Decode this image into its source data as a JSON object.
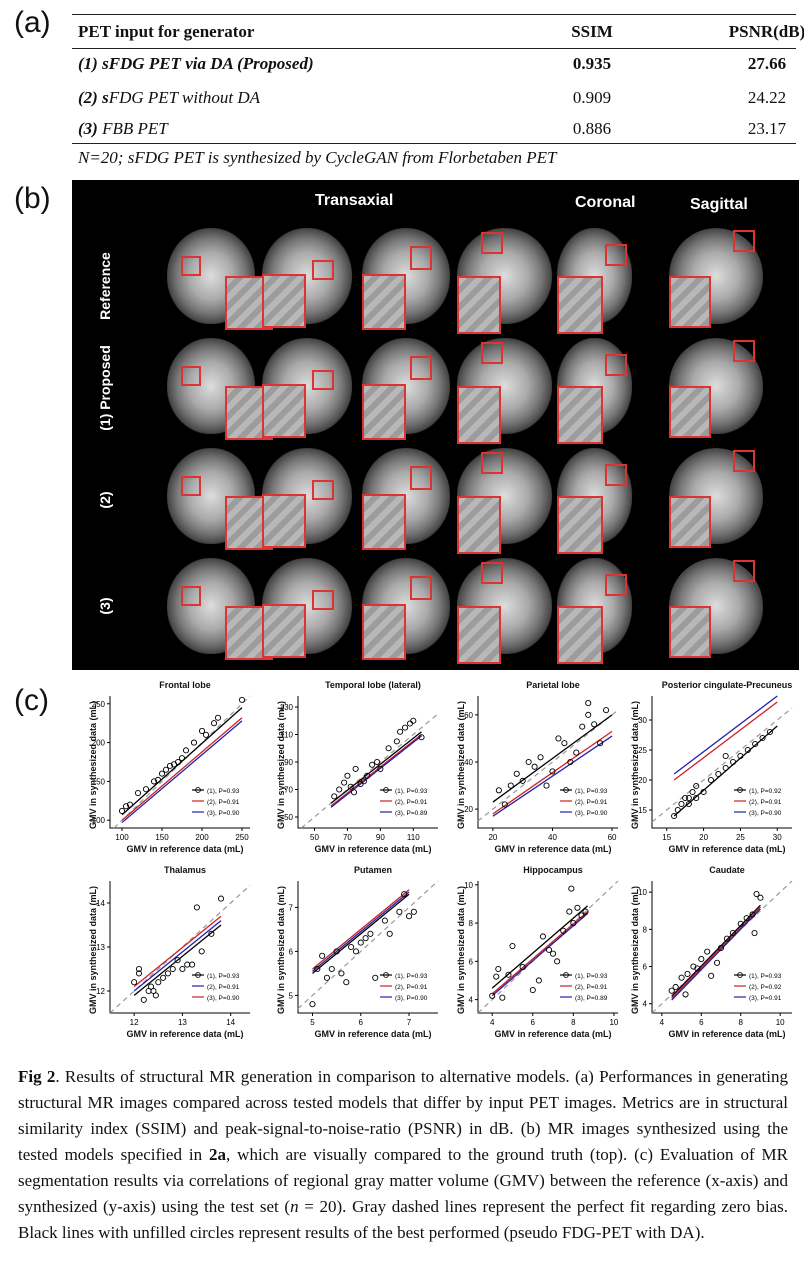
{
  "panel_labels": {
    "a": "(a)",
    "b": "(b)",
    "c": "(c)"
  },
  "table": {
    "headers": [
      "PET input for generator",
      "SSIM",
      "PSNR(dB)"
    ],
    "rows": [
      {
        "name_b": "(1) sFDG PET via DA (Proposed)",
        "ssim": "0.935",
        "psnr": "27.66",
        "bold": true
      },
      {
        "num": "(2) ",
        "s": "s",
        "rest": "FDG PET without DA",
        "ssim": "0.909",
        "psnr": "24.22",
        "bold": false
      },
      {
        "num": "(3) ",
        "s": "",
        "rest": "FBB PET",
        "ssim": "0.886",
        "psnr": "23.17",
        "bold": false
      }
    ],
    "note": "N=20; sFDG PET  is synthesized by CycleGAN from Florbetaben PET"
  },
  "mr": {
    "col_headers": {
      "transaxial": "Transaxial",
      "coronal": "Coronal",
      "sagittal": "Sagittal"
    },
    "row_headers": [
      "Reference",
      "(1) Proposed",
      "(2)",
      "(3)"
    ]
  },
  "chart_data": [
    {
      "type": "scatter",
      "title": "Frontal lobe",
      "xlabel": "GMV in reference data (mL)",
      "ylabel": "GMV in synthesized data (mL)",
      "xlim": [
        85,
        260
      ],
      "ylim": [
        90,
        260
      ],
      "xticks": [
        100,
        150,
        200,
        250
      ],
      "yticks": [
        100,
        150,
        200,
        250
      ],
      "points": [
        [
          100,
          112
        ],
        [
          105,
          118
        ],
        [
          110,
          120
        ],
        [
          120,
          135
        ],
        [
          130,
          140
        ],
        [
          140,
          150
        ],
        [
          145,
          152
        ],
        [
          150,
          160
        ],
        [
          155,
          165
        ],
        [
          160,
          170
        ],
        [
          165,
          172
        ],
        [
          170,
          175
        ],
        [
          175,
          180
        ],
        [
          180,
          190
        ],
        [
          190,
          200
        ],
        [
          200,
          215
        ],
        [
          205,
          210
        ],
        [
          215,
          225
        ],
        [
          220,
          232
        ],
        [
          250,
          255
        ]
      ],
      "series": [
        {
          "name": "(1), P=0.93",
          "color": "#000000",
          "line": [
            100,
            107,
            250,
            245
          ]
        },
        {
          "name": "(2), P=0.91",
          "color": "#cc2222",
          "line": [
            100,
            100,
            250,
            232
          ]
        },
        {
          "name": "(3), P=0.90",
          "color": "#2222aa",
          "line": [
            100,
            97,
            250,
            228
          ]
        }
      ]
    },
    {
      "type": "scatter",
      "title": "Temporal lobe (lateral)",
      "xlabel": "GMV in reference data (mL)",
      "ylabel": "GMV in synthesized data (mL)",
      "xlim": [
        40,
        125
      ],
      "ylim": [
        42,
        138
      ],
      "xticks": [
        50,
        70,
        90,
        110
      ],
      "yticks": [
        50,
        70,
        90,
        110,
        130
      ],
      "points": [
        [
          62,
          65
        ],
        [
          65,
          70
        ],
        [
          68,
          75
        ],
        [
          70,
          80
        ],
        [
          72,
          72
        ],
        [
          74,
          68
        ],
        [
          75,
          85
        ],
        [
          78,
          74
        ],
        [
          80,
          76
        ],
        [
          82,
          80
        ],
        [
          85,
          88
        ],
        [
          88,
          90
        ],
        [
          90,
          85
        ],
        [
          95,
          100
        ],
        [
          100,
          105
        ],
        [
          102,
          112
        ],
        [
          105,
          115
        ],
        [
          108,
          118
        ],
        [
          110,
          120
        ],
        [
          115,
          108
        ]
      ],
      "series": [
        {
          "name": "(1), P=0.93",
          "color": "#000000",
          "line": [
            60,
            60,
            115,
            112
          ]
        },
        {
          "name": "(2), P=0.91",
          "color": "#cc2222",
          "line": [
            60,
            58,
            115,
            110
          ]
        },
        {
          "name": "(3), P=0.89",
          "color": "#2222aa",
          "line": [
            60,
            57,
            115,
            109
          ]
        }
      ]
    },
    {
      "type": "scatter",
      "title": "Parietal lobe",
      "xlabel": "GMV in reference data (mL)",
      "ylabel": "GMV in synthesized data (mL)",
      "xlim": [
        15,
        62
      ],
      "ylim": [
        12,
        68
      ],
      "xticks": [
        20,
        40,
        60
      ],
      "yticks": [
        20,
        40,
        60
      ],
      "points": [
        [
          22,
          28
        ],
        [
          24,
          22
        ],
        [
          26,
          30
        ],
        [
          28,
          35
        ],
        [
          30,
          32
        ],
        [
          32,
          40
        ],
        [
          34,
          38
        ],
        [
          36,
          42
        ],
        [
          38,
          30
        ],
        [
          40,
          36
        ],
        [
          42,
          50
        ],
        [
          44,
          48
        ],
        [
          46,
          40
        ],
        [
          48,
          44
        ],
        [
          50,
          55
        ],
        [
          52,
          60
        ],
        [
          54,
          56
        ],
        [
          56,
          48
        ],
        [
          58,
          62
        ],
        [
          52,
          65
        ]
      ],
      "series": [
        {
          "name": "(1), P=0.93",
          "color": "#000000",
          "line": [
            20,
            23,
            60,
            60
          ]
        },
        {
          "name": "(2), P=0.91",
          "color": "#cc2222",
          "line": [
            20,
            18,
            60,
            53
          ]
        },
        {
          "name": "(3), P=0.90",
          "color": "#2222aa",
          "line": [
            20,
            17,
            60,
            51
          ]
        }
      ]
    },
    {
      "type": "scatter",
      "title": "Posterior cingulate-Precuneus",
      "xlabel": "GMV in reference data (mL)",
      "ylabel": "GMV in synthesized data (mL)",
      "xlim": [
        13,
        32
      ],
      "ylim": [
        12,
        34
      ],
      "xticks": [
        15,
        20,
        25,
        30
      ],
      "yticks": [
        15,
        20,
        25,
        30
      ],
      "points": [
        [
          16,
          14
        ],
        [
          16.5,
          15
        ],
        [
          17,
          16
        ],
        [
          17.5,
          17
        ],
        [
          18,
          16
        ],
        [
          18,
          17
        ],
        [
          18.5,
          18
        ],
        [
          19,
          17
        ],
        [
          19,
          19
        ],
        [
          20,
          18
        ],
        [
          21,
          20
        ],
        [
          22,
          21
        ],
        [
          23,
          22
        ],
        [
          23,
          24
        ],
        [
          24,
          23
        ],
        [
          25,
          24
        ],
        [
          26,
          25
        ],
        [
          27,
          26
        ],
        [
          28,
          27
        ],
        [
          29,
          28
        ]
      ],
      "series": [
        {
          "name": "(1), P=0.92",
          "color": "#000000",
          "line": [
            16,
            14,
            30,
            29
          ]
        },
        {
          "name": "(2), P=0.91",
          "color": "#cc2222",
          "line": [
            16,
            20,
            30,
            33
          ]
        },
        {
          "name": "(3), P=0.90",
          "color": "#2222aa",
          "line": [
            16,
            21,
            30,
            34
          ]
        }
      ]
    },
    {
      "type": "scatter",
      "title": "Thalamus",
      "xlabel": "GMV in reference data (mL)",
      "ylabel": "GMV in synthesized data (mL)",
      "xlim": [
        11.5,
        14.4
      ],
      "ylim": [
        11.5,
        14.5
      ],
      "xticks": [
        12,
        13,
        14
      ],
      "yticks": [
        12,
        13,
        14
      ],
      "points": [
        [
          12.0,
          12.2
        ],
        [
          12.1,
          12.4
        ],
        [
          12.1,
          12.5
        ],
        [
          12.2,
          11.8
        ],
        [
          12.3,
          12.0
        ],
        [
          12.35,
          12.1
        ],
        [
          12.4,
          12.0
        ],
        [
          12.45,
          11.9
        ],
        [
          12.5,
          12.2
        ],
        [
          12.6,
          12.3
        ],
        [
          12.7,
          12.4
        ],
        [
          12.8,
          12.5
        ],
        [
          12.9,
          12.7
        ],
        [
          13.0,
          12.5
        ],
        [
          13.1,
          12.6
        ],
        [
          13.2,
          12.6
        ],
        [
          13.3,
          13.9
        ],
        [
          13.4,
          12.9
        ],
        [
          13.6,
          13.3
        ],
        [
          13.8,
          14.1
        ]
      ],
      "series": [
        {
          "name": "(1), P=0.93",
          "color": "#000000",
          "line": [
            12.0,
            11.9,
            13.8,
            13.5
          ]
        },
        {
          "name": "(2), P=0.91",
          "color": "#2222aa",
          "line": [
            12.0,
            12.0,
            13.8,
            13.6
          ]
        },
        {
          "name": "(3), P=0.90",
          "color": "#cc2222",
          "line": [
            12.0,
            12.1,
            13.8,
            13.7
          ]
        }
      ]
    },
    {
      "type": "scatter",
      "title": "Putamen",
      "xlabel": "GMV in reference data (mL)",
      "ylabel": "GMV in synthesized data (mL)",
      "xlim": [
        4.7,
        7.6
      ],
      "ylim": [
        4.6,
        7.6
      ],
      "xticks": [
        5,
        6,
        7
      ],
      "yticks": [
        5,
        6,
        7
      ],
      "points": [
        [
          5.0,
          4.8
        ],
        [
          5.1,
          5.6
        ],
        [
          5.2,
          5.9
        ],
        [
          5.3,
          5.4
        ],
        [
          5.4,
          5.6
        ],
        [
          5.5,
          6.0
        ],
        [
          5.6,
          5.5
        ],
        [
          5.7,
          5.3
        ],
        [
          5.8,
          6.1
        ],
        [
          5.9,
          6.0
        ],
        [
          6.0,
          6.2
        ],
        [
          6.1,
          6.3
        ],
        [
          6.2,
          6.4
        ],
        [
          6.3,
          5.4
        ],
        [
          6.5,
          6.7
        ],
        [
          6.6,
          6.4
        ],
        [
          6.8,
          6.9
        ],
        [
          6.9,
          7.3
        ],
        [
          7.0,
          6.8
        ],
        [
          7.1,
          6.9
        ]
      ],
      "series": [
        {
          "name": "(1), P=0.93",
          "color": "#000000",
          "line": [
            5.0,
            5.5,
            7.0,
            7.3
          ]
        },
        {
          "name": "(2), P=0.91",
          "color": "#cc2222",
          "line": [
            5.0,
            5.6,
            7.0,
            7.4
          ]
        },
        {
          "name": "(3), P=0.90",
          "color": "#2222aa",
          "line": [
            5.0,
            5.55,
            7.0,
            7.35
          ]
        }
      ]
    },
    {
      "type": "scatter",
      "title": "Hippocampus",
      "xlabel": "GMV in reference data (mL)",
      "ylabel": "GMV in synthesized data (mL)",
      "xlim": [
        3.3,
        10.2
      ],
      "ylim": [
        3.3,
        10.2
      ],
      "xticks": [
        4,
        6,
        8,
        10
      ],
      "yticks": [
        4,
        6,
        8,
        10
      ],
      "points": [
        [
          4.0,
          4.2
        ],
        [
          4.2,
          5.2
        ],
        [
          4.3,
          5.6
        ],
        [
          4.5,
          4.1
        ],
        [
          4.8,
          5.3
        ],
        [
          5.0,
          6.8
        ],
        [
          5.5,
          5.7
        ],
        [
          6.0,
          4.5
        ],
        [
          6.3,
          5.0
        ],
        [
          6.5,
          7.3
        ],
        [
          6.8,
          6.6
        ],
        [
          7.0,
          6.4
        ],
        [
          7.2,
          6.0
        ],
        [
          7.5,
          7.6
        ],
        [
          7.8,
          8.6
        ],
        [
          8.0,
          8.0
        ],
        [
          8.2,
          8.8
        ],
        [
          8.4,
          8.4
        ],
        [
          8.6,
          8.6
        ],
        [
          7.9,
          9.8
        ]
      ],
      "series": [
        {
          "name": "(1), P=0.93",
          "color": "#000000",
          "line": [
            4.0,
            4.6,
            8.7,
            8.9
          ]
        },
        {
          "name": "(2), P=0.91",
          "color": "#cc2222",
          "line": [
            4.0,
            4.3,
            8.7,
            8.6
          ]
        },
        {
          "name": "(3), P=0.89",
          "color": "#2222aa",
          "line": [
            4.0,
            4.2,
            8.7,
            8.5
          ]
        }
      ]
    },
    {
      "type": "scatter",
      "title": "Caudate",
      "xlabel": "GMV in reference data (mL)",
      "ylabel": "GMV in synthesized data (mL)",
      "xlim": [
        3.5,
        10.6
      ],
      "ylim": [
        3.5,
        10.6
      ],
      "xticks": [
        4,
        6,
        8,
        10
      ],
      "yticks": [
        4,
        6,
        8,
        10
      ],
      "points": [
        [
          4.5,
          4.7
        ],
        [
          4.7,
          4.9
        ],
        [
          5.0,
          5.4
        ],
        [
          5.2,
          4.5
        ],
        [
          5.3,
          5.6
        ],
        [
          5.6,
          6.0
        ],
        [
          5.8,
          5.9
        ],
        [
          6.0,
          6.4
        ],
        [
          6.3,
          6.8
        ],
        [
          6.5,
          5.5
        ],
        [
          6.8,
          6.2
        ],
        [
          7.0,
          7.0
        ],
        [
          7.3,
          7.5
        ],
        [
          7.6,
          7.8
        ],
        [
          8.0,
          8.3
        ],
        [
          8.3,
          8.6
        ],
        [
          8.6,
          8.8
        ],
        [
          8.8,
          9.9
        ],
        [
          9.0,
          9.7
        ],
        [
          8.7,
          7.8
        ]
      ],
      "series": [
        {
          "name": "(1), P=0.93",
          "color": "#000000",
          "line": [
            4.5,
            4.4,
            9.0,
            9.3
          ]
        },
        {
          "name": "(2), P=0.92",
          "color": "#cc2222",
          "line": [
            4.5,
            4.3,
            9.0,
            9.2
          ]
        },
        {
          "name": "(3), P=0.91",
          "color": "#2222aa",
          "line": [
            4.5,
            4.2,
            9.0,
            9.1
          ]
        }
      ]
    }
  ],
  "caption": {
    "fig": "Fig 2",
    "t1": ". Results of structural MR generation in comparison to alternative models. (a) Performances in generating structural MR images compared across tested models that differ by input PET images. Metrics are in structural similarity index (SSIM) and peak-signal-to-noise-ratio (PSNR) in dB. (b) MR images synthesized using the tested models specified in ",
    "ref": "2a",
    "t2": ", which are visually compared to the ground truth (top). (c) Evaluation of MR segmentation results via correlations of regional gray matter volume (GMV) between the reference (x-axis) and synthesized (y-axis) using the test set (",
    "n": "n",
    "t3": " = 20). Gray dashed lines represent the perfect fit regarding zero bias. Black lines with unfilled circles represent results of the best performed (pseudo FDG-PET with DA)."
  }
}
